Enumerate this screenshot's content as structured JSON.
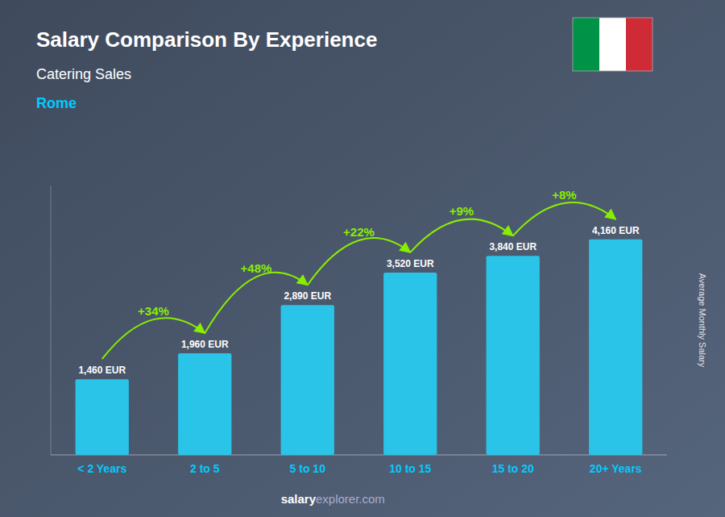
{
  "chart_data": {
    "type": "bar",
    "title": "Salary Comparison By Experience",
    "subtitle": "Catering Sales",
    "ylabel": "Average Monthly Salary",
    "annotations": {
      "city": "Rome",
      "changes": [
        "+34%",
        "+48%",
        "+22%",
        "+9%",
        "+8%"
      ],
      "footer": [
        "salary",
        "explorer.com"
      ]
    },
    "categories": [
      "< 2 Years",
      "2 to 5",
      "5 to 10",
      "10 to 15",
      "15 to 20",
      "20+ Years"
    ],
    "values": [
      1460,
      1960,
      2890,
      3520,
      3840,
      4160
    ],
    "value_labels": [
      "1,460 EUR",
      "1,960 EUR",
      "2,890 EUR",
      "3,520 EUR",
      "3,840 EUR",
      "4,160 EUR"
    ],
    "color": "#29C4E8",
    "ylim": [
      0,
      5200
    ],
    "data_labels": true,
    "tick_labels": "x",
    "grid": false
  }
}
